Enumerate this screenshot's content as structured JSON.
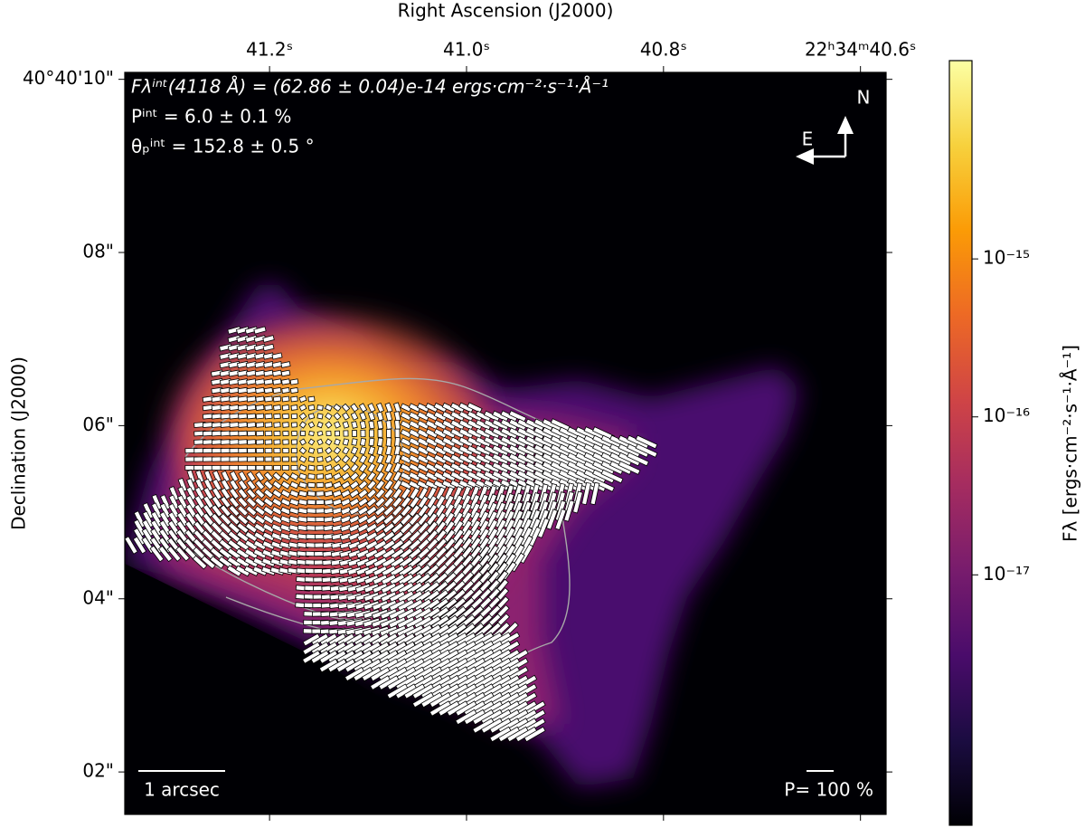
{
  "chart_data": {
    "type": "image",
    "x_label": "Right Ascension (J2000)",
    "y_label": "Declination (J2000)",
    "xlim": [
      41.347,
      40.574
    ],
    "xticks": [
      {
        "value": 41.2,
        "label": "41.2ˢ"
      },
      {
        "value": 41.0,
        "label": "41.0ˢ"
      },
      {
        "value": 40.8,
        "label": "40.8ˢ"
      },
      {
        "value": 40.6,
        "label": "22ʰ34ᵐ40.6ˢ"
      }
    ],
    "ylim": [
      1.51,
      10.08
    ],
    "yticks": [
      {
        "value": 10,
        "label": "40°40'10\""
      },
      {
        "value": 8,
        "label": "08\""
      },
      {
        "value": 6,
        "label": "06\""
      },
      {
        "value": 4,
        "label": "04\""
      },
      {
        "value": 2,
        "label": "02\""
      }
    ],
    "annotations": [
      "Fλⁱⁿᵗ(4118 Å) = (62.86 ± 0.04)e-14 ergs·cm⁻²·s⁻¹·Å⁻¹",
      "Pⁱⁿᵗ = 6.0 ± 0.1 %",
      "θₚⁱⁿᵗ = 152.8 ± 0.5 °"
    ],
    "compass": {
      "north": "N",
      "east": "E"
    },
    "scale_bar": "1 arcsec",
    "vector_scale": "P= 100 %",
    "colorbar": {
      "label": "Fλ [ergs·cm⁻²·s⁻¹·Å⁻¹]",
      "log_scale": true,
      "colormap": "inferno",
      "clim": [
        2.6e-19,
        1.8e-14
      ],
      "ticks": [
        {
          "value": 1e-15,
          "label": "10⁻¹⁵"
        },
        {
          "value": 1e-16,
          "label": "10⁻¹⁶"
        },
        {
          "value": 1e-17,
          "label": "10⁻¹⁷"
        }
      ]
    }
  }
}
